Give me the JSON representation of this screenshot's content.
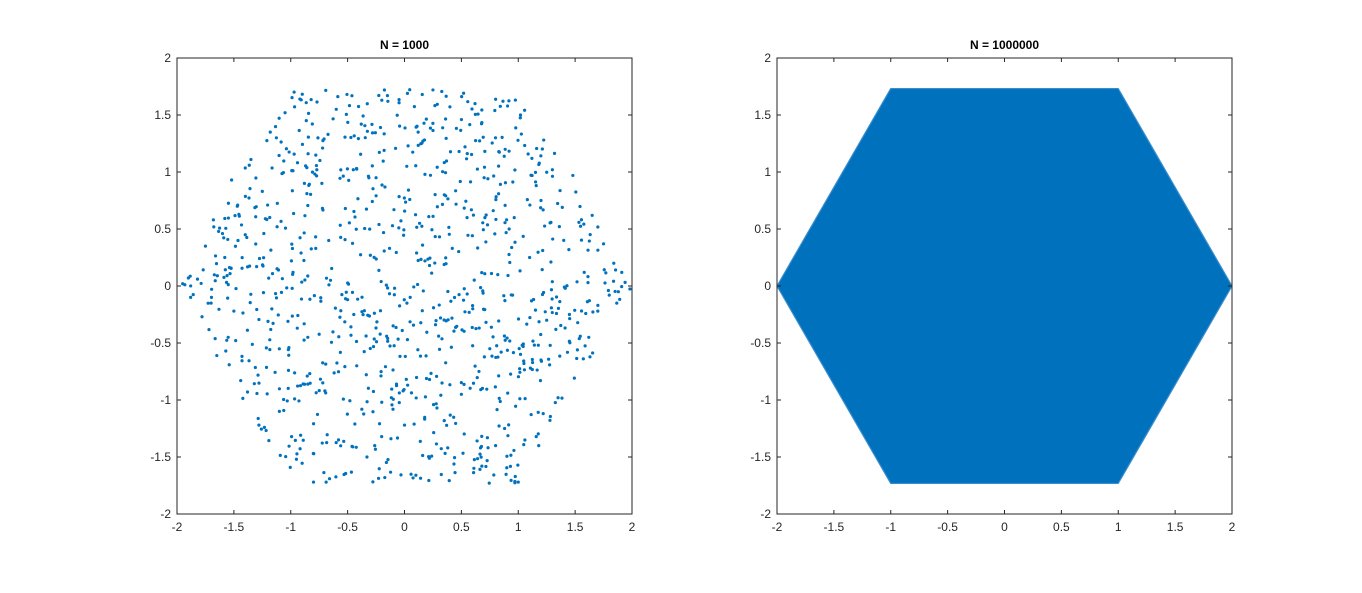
{
  "chart_data": [
    {
      "type": "scatter",
      "title": "N = 1000",
      "xlim": [
        -2,
        2
      ],
      "ylim": [
        -2,
        2
      ],
      "xticks": [
        "-2",
        "-1.5",
        "-1",
        "-0.5",
        "0",
        "0.5",
        "1",
        "1.5",
        "2"
      ],
      "yticks": [
        "2",
        "1.5",
        "1",
        "0.5",
        "0",
        "-0.5",
        "-1",
        "-1.5",
        "-2"
      ],
      "grid": false,
      "marker_color": "#0072BD",
      "n_points": 1000,
      "point_distribution": "random walk on triangular lattice, steps of length 1 at 0°, 120°, 240°, accumulated inside a regular hexagon with vertices (±2, 0), (±1, ±1.732)",
      "points": [
        [
          -1.95,
          0.02
        ],
        [
          -1.9,
          0.07
        ],
        [
          -1.88,
          -0.1
        ],
        [
          -1.82,
          0.06
        ],
        [
          -1.78,
          -0.27
        ],
        [
          -1.75,
          0.35
        ],
        [
          -1.7,
          -0.15
        ],
        [
          -1.68,
          0.58
        ],
        [
          -1.65,
          -0.61
        ],
        [
          -1.6,
          0.46
        ],
        [
          -1.58,
          0.25
        ],
        [
          -1.55,
          -0.45
        ],
        [
          -1.52,
          0.93
        ],
        [
          -1.5,
          -0.22
        ],
        [
          -1.47,
          0.7
        ],
        [
          -1.44,
          -0.83
        ],
        [
          -1.4,
          0.45
        ],
        [
          -1.38,
          -0.93
        ],
        [
          -1.35,
          1.11
        ],
        [
          -1.3,
          0.17
        ],
        [
          -1.28,
          -1.22
        ],
        [
          -1.25,
          0.83
        ],
        [
          -1.2,
          -0.31
        ],
        [
          -1.18,
          1.35
        ],
        [
          -1.12,
          0.52
        ],
        [
          -1.1,
          -1.1
        ],
        [
          -1.05,
          1.52
        ],
        [
          -1.02,
          -0.74
        ],
        [
          -0.98,
          0.12
        ],
        [
          -0.95,
          -1.52
        ],
        [
          -0.92,
          1.64
        ],
        [
          -0.88,
          0.9
        ],
        [
          -0.85,
          -0.45
        ],
        [
          -0.8,
          -1.72
        ],
        [
          -0.78,
          0.33
        ],
        [
          -0.72,
          1.21
        ],
        [
          -0.7,
          -0.92
        ],
        [
          -0.65,
          0.05
        ],
        [
          -0.6,
          1.55
        ],
        [
          -0.58,
          -1.35
        ],
        [
          -0.52,
          0.68
        ],
        [
          -0.5,
          -0.12
        ],
        [
          -0.45,
          1.02
        ],
        [
          -0.42,
          -0.7
        ],
        [
          -0.38,
          1.42
        ],
        [
          -0.33,
          -1.5
        ],
        [
          -0.3,
          0.27
        ],
        [
          -0.25,
          0.95
        ],
        [
          -0.2,
          -1.02
        ],
        [
          -0.15,
          1.67
        ],
        [
          -0.1,
          -0.35
        ],
        [
          -0.05,
          0.51
        ],
        [
          0.0,
          -1.22
        ],
        [
          0.02,
          1.05
        ],
        [
          0.05,
          -0.1
        ],
        [
          0.1,
          -1.66
        ],
        [
          0.12,
          1.35
        ],
        [
          0.18,
          0.22
        ],
        [
          0.22,
          -0.82
        ],
        [
          0.25,
          1.72
        ],
        [
          0.3,
          -0.44
        ],
        [
          0.35,
          0.8
        ],
        [
          0.38,
          -1.42
        ],
        [
          0.42,
          0.33
        ],
        [
          0.48,
          1.18
        ],
        [
          0.5,
          -0.95
        ],
        [
          0.55,
          0.6
        ],
        [
          0.6,
          -0.2
        ],
        [
          0.62,
          1.6
        ],
        [
          0.68,
          -1.58
        ],
        [
          0.7,
          0.95
        ],
        [
          0.75,
          -0.55
        ],
        [
          0.8,
          1.3
        ],
        [
          0.82,
          0.1
        ],
        [
          0.88,
          -1.25
        ],
        [
          0.92,
          0.5
        ],
        [
          0.95,
          -0.08
        ],
        [
          1.0,
          -1.72
        ],
        [
          1.02,
          1.5
        ],
        [
          1.05,
          -0.68
        ],
        [
          1.1,
          0.25
        ],
        [
          1.12,
          1.12
        ],
        [
          1.18,
          -1.4
        ],
        [
          1.2,
          0.75
        ],
        [
          1.25,
          -0.3
        ],
        [
          1.3,
          1.02
        ],
        [
          1.35,
          -0.98
        ],
        [
          1.4,
          0.4
        ],
        [
          1.45,
          -0.25
        ],
        [
          1.48,
          0.97
        ],
        [
          1.52,
          -0.56
        ],
        [
          1.58,
          0.12
        ],
        [
          1.62,
          -0.45
        ],
        [
          1.65,
          0.62
        ],
        [
          1.7,
          -0.17
        ],
        [
          1.75,
          0.37
        ],
        [
          1.8,
          -0.08
        ],
        [
          1.84,
          0.2
        ],
        [
          1.88,
          -0.05
        ],
        [
          1.91,
          0.12
        ]
      ]
    },
    {
      "type": "scatter",
      "title": "N = 1000000",
      "xlim": [
        -2,
        2
      ],
      "ylim": [
        -2,
        2
      ],
      "xticks": [
        "-2",
        "-1.5",
        "-1",
        "-0.5",
        "0",
        "0.5",
        "1",
        "1.5",
        "2"
      ],
      "yticks": [
        "2",
        "1.5",
        "1",
        "0.5",
        "0",
        "-0.5",
        "-1",
        "-1.5",
        "-2"
      ],
      "grid": false,
      "marker_color": "#0072BD",
      "n_points": 1000000,
      "filled_region": {
        "shape": "regular hexagon",
        "vertices": [
          [
            -2,
            0
          ],
          [
            -1,
            1.732
          ],
          [
            1,
            1.732
          ],
          [
            2,
            0
          ],
          [
            1,
            -1.732
          ],
          [
            -1,
            -1.732
          ]
        ]
      }
    }
  ]
}
